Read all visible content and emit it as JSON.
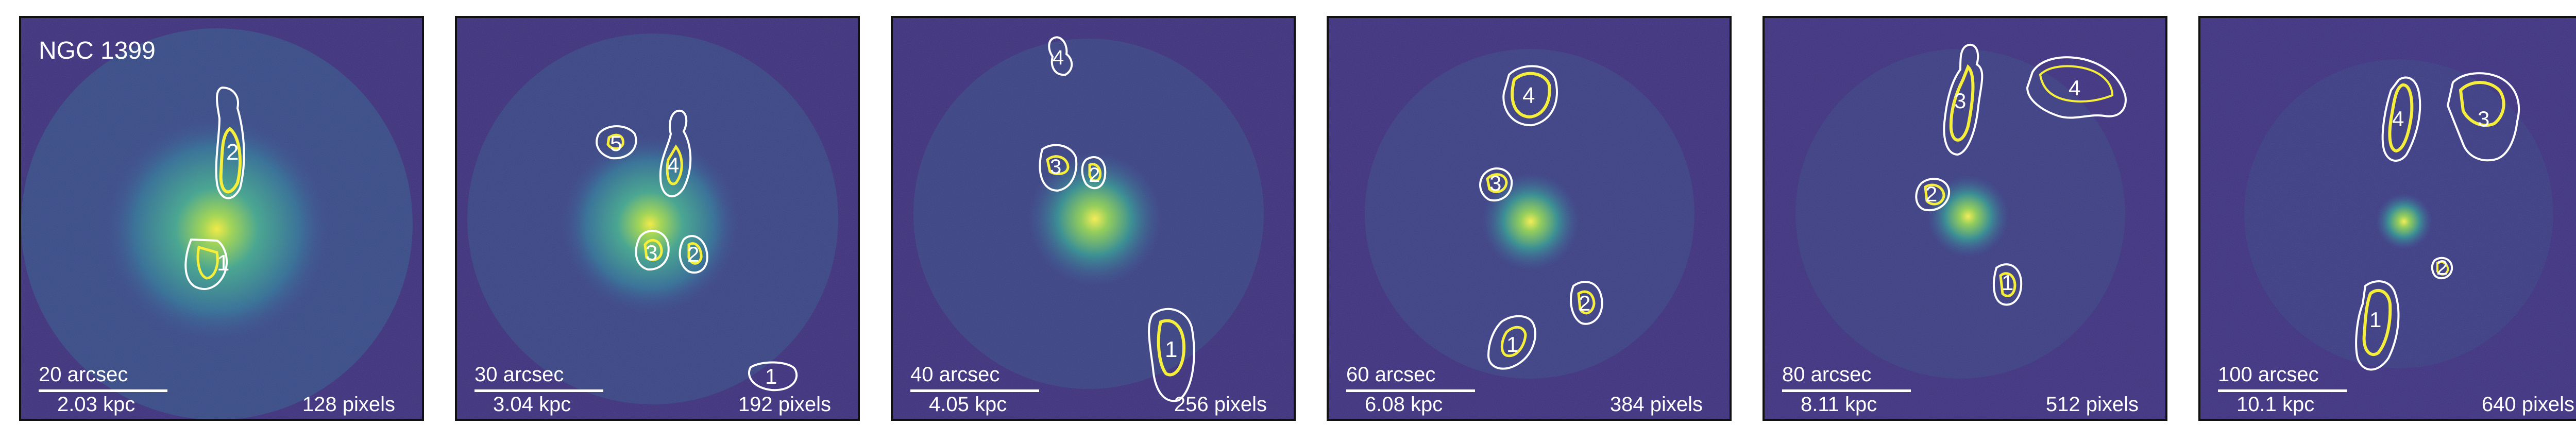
{
  "colors": {
    "background": "#3b2e7a",
    "core": "#f5ef3b",
    "contour_outer": "#ffffff",
    "contour_inner": "#f5ef3b",
    "label": "#ffffff"
  },
  "figure": {
    "panels": [
      {
        "title": "NGC 1399",
        "scale_arcsec": "20 arcsec",
        "scale_kpc": "2.03 kpc",
        "scale_pixels": "128 pixels",
        "regions": [
          "1",
          "2"
        ]
      },
      {
        "title": "",
        "scale_arcsec": "30 arcsec",
        "scale_kpc": "3.04 kpc",
        "scale_pixels": "192 pixels",
        "regions": [
          "1",
          "2",
          "3",
          "4",
          "5"
        ]
      },
      {
        "title": "",
        "scale_arcsec": "40 arcsec",
        "scale_kpc": "4.05 kpc",
        "scale_pixels": "256 pixels",
        "regions": [
          "1",
          "2",
          "3",
          "4"
        ]
      },
      {
        "title": "",
        "scale_arcsec": "60 arcsec",
        "scale_kpc": "6.08 kpc",
        "scale_pixels": "384 pixels",
        "regions": [
          "1",
          "2",
          "3",
          "4"
        ]
      },
      {
        "title": "",
        "scale_arcsec": "80 arcsec",
        "scale_kpc": "8.11 kpc",
        "scale_pixels": "512 pixels",
        "regions": [
          "1",
          "2",
          "3",
          "4"
        ]
      },
      {
        "title": "",
        "scale_arcsec": "100 arcsec",
        "scale_kpc": "10.1 kpc",
        "scale_pixels": "640 pixels",
        "regions": [
          "1",
          "2",
          "3",
          "4"
        ]
      }
    ]
  }
}
